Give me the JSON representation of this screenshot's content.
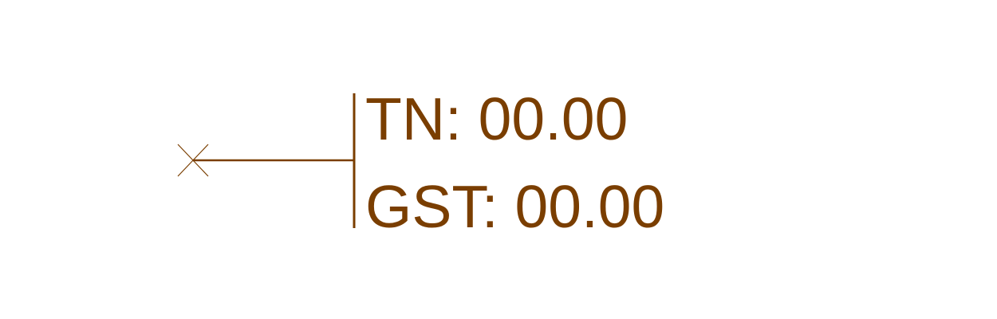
{
  "label": {
    "line1": "TN: 00.00",
    "line2": "GST: 00.00"
  },
  "colors": {
    "stroke": "#7a3e00",
    "background": "#ffffff"
  }
}
